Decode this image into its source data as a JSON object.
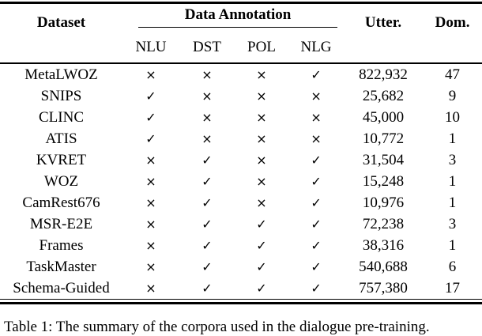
{
  "table": {
    "headers": {
      "dataset": "Dataset",
      "data_annotation": "Data Annotation",
      "utterances": "Utter.",
      "domains": "Dom."
    },
    "subheaders": {
      "nlu": "NLU",
      "dst": "DST",
      "pol": "POL",
      "nlg": "NLG"
    },
    "symbols": {
      "has_annotation": "✓",
      "no_annotation": "×"
    },
    "rows": [
      {
        "dataset": "MetaLWOZ",
        "nlu": "×",
        "dst": "×",
        "pol": "×",
        "nlg": "✓",
        "utterances": "822,932",
        "domains": "47"
      },
      {
        "dataset": "SNIPS",
        "nlu": "✓",
        "dst": "×",
        "pol": "×",
        "nlg": "×",
        "utterances": "25,682",
        "domains": "9"
      },
      {
        "dataset": "CLINC",
        "nlu": "✓",
        "dst": "×",
        "pol": "×",
        "nlg": "×",
        "utterances": "45,000",
        "domains": "10"
      },
      {
        "dataset": "ATIS",
        "nlu": "✓",
        "dst": "×",
        "pol": "×",
        "nlg": "×",
        "utterances": "10,772",
        "domains": "1"
      },
      {
        "dataset": "KVRET",
        "nlu": "×",
        "dst": "✓",
        "pol": "×",
        "nlg": "✓",
        "utterances": "31,504",
        "domains": "3"
      },
      {
        "dataset": "WOZ",
        "nlu": "×",
        "dst": "✓",
        "pol": "×",
        "nlg": "✓",
        "utterances": "15,248",
        "domains": "1"
      },
      {
        "dataset": "CamRest676",
        "nlu": "×",
        "dst": "✓",
        "pol": "×",
        "nlg": "✓",
        "utterances": "10,976",
        "domains": "1"
      },
      {
        "dataset": "MSR-E2E",
        "nlu": "×",
        "dst": "✓",
        "pol": "✓",
        "nlg": "✓",
        "utterances": "72,238",
        "domains": "3"
      },
      {
        "dataset": "Frames",
        "nlu": "×",
        "dst": "✓",
        "pol": "✓",
        "nlg": "✓",
        "utterances": "38,316",
        "domains": "1"
      },
      {
        "dataset": "TaskMaster",
        "nlu": "×",
        "dst": "✓",
        "pol": "✓",
        "nlg": "✓",
        "utterances": "540,688",
        "domains": "6"
      },
      {
        "dataset": "Schema-Guided",
        "nlu": "×",
        "dst": "✓",
        "pol": "✓",
        "nlg": "✓",
        "utterances": "757,380",
        "domains": "17"
      }
    ]
  },
  "caption": "Table 1: The summary of the corpora used in the dialogue pre-training.",
  "colors": {
    "text": "#000000",
    "background": "#ffffff",
    "rule": "#000000"
  }
}
